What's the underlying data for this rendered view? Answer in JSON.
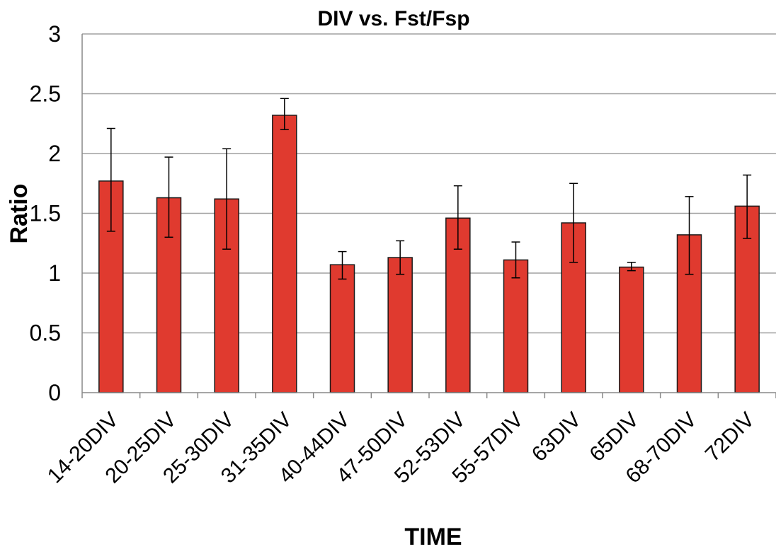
{
  "chart_data": {
    "type": "bar",
    "title": "DIV vs. Fst/Fsp",
    "xlabel": "TIME",
    "ylabel": "Ratio",
    "ylim": [
      0,
      3
    ],
    "yticks": [
      "0",
      "0.5",
      "1",
      "1.5",
      "2",
      "2.5",
      "3"
    ],
    "grid": true,
    "categories": [
      "14-20DIV",
      "20-25DIV",
      "25-30DIV",
      "31-35DIV",
      "40-44DIV",
      "47-50DIV",
      "52-53DIV",
      "55-57DIV",
      "63DIV",
      "65DIV",
      "68-70DIV",
      "72DIV"
    ],
    "values": [
      1.77,
      1.63,
      1.62,
      2.32,
      1.07,
      1.13,
      1.46,
      1.11,
      1.42,
      1.05,
      1.32,
      1.56
    ],
    "error_upper": [
      2.21,
      1.97,
      2.04,
      2.46,
      1.18,
      1.27,
      1.73,
      1.26,
      1.75,
      1.09,
      1.64,
      1.82
    ],
    "error_lower": [
      1.35,
      1.3,
      1.2,
      2.2,
      0.95,
      0.99,
      1.2,
      0.96,
      1.09,
      1.02,
      0.99,
      1.29
    ],
    "colors": {
      "bar": "#e03a2f",
      "bar_stroke": "#1a1a1a",
      "grid": "#a0a0a0",
      "axis": "#888888"
    }
  }
}
